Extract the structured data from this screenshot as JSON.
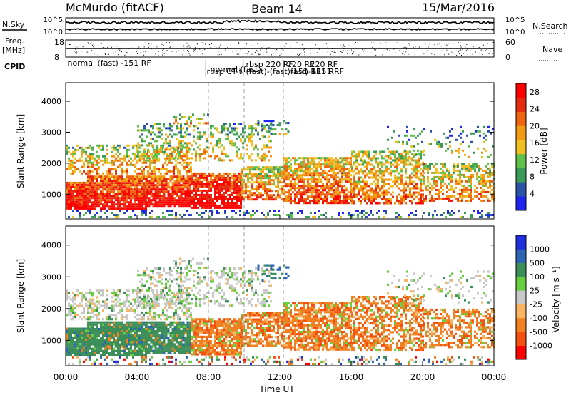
{
  "header": {
    "station": "McMurdo (fitACF)",
    "beam": "Beam 14",
    "date": "15/Mar/2016"
  },
  "noise_panel": {
    "left_label": "N.Sky",
    "right_label": "N.Search",
    "left_ticks": [
      "10^5",
      "10^0"
    ],
    "right_ticks": [
      "10^5",
      "10^0"
    ]
  },
  "freq_panel": {
    "left_label_1": "Freq.",
    "left_label_2": "[MHz]",
    "right_label": "Nave",
    "left_ticks": [
      "18",
      "8"
    ],
    "right_ticks": [
      "60",
      "0"
    ]
  },
  "cpid": {
    "label": "CPID",
    "entries": [
      {
        "text": "normal (fast) -151 RF",
        "start_hour": 0.1
      },
      {
        "text": "rbsp CT-t",
        "start_hour": 7.9
      },
      {
        "text": "normal (fast)",
        "start_hour": 8.1
      },
      {
        "text": "rbsp 220 RF",
        "start_hour": 10.1
      },
      {
        "text": "(fast)-(fast)-151 RF",
        "start_hour": 10.1
      },
      {
        "text": "220 RF",
        "start_hour": 12.4
      },
      {
        "text": "fast)-151 RF",
        "start_hour": 12.6
      },
      {
        "text": "220 RF",
        "start_hour": 13.7
      },
      {
        "text": "-151 RF",
        "start_hour": 13.9
      }
    ]
  },
  "colors": {
    "power": [
      "#1f24f0",
      "#2b53a8",
      "#3a9a58",
      "#5fc04a",
      "#f0c020",
      "#f29a14",
      "#f06410",
      "#e62a10",
      "#ff0000"
    ],
    "velocity": [
      "#ff0000",
      "#f45010",
      "#f08020",
      "#f8b460",
      "#c8c8c8",
      "#68d040",
      "#3d8f5a",
      "#2e64b4",
      "#2030e0"
    ]
  },
  "chart_data": [
    {
      "type": "heatmap",
      "name": "power",
      "ylabel": "Slant Range [km]",
      "yticks": [
        1000,
        2000,
        3000,
        4000
      ],
      "ylim": [
        200,
        4600
      ],
      "xlim": [
        0,
        24
      ],
      "xticks": [
        "00:00",
        "04:00",
        "08:00",
        "12:00",
        "16:00",
        "20:00",
        "00:00"
      ],
      "colorbar_label": "Power [dB]",
      "colorbar_ticks": [
        4,
        8,
        12,
        16,
        20,
        24,
        28
      ],
      "colorbar_range": [
        0,
        30
      ]
    },
    {
      "type": "heatmap",
      "name": "velocity",
      "ylabel": "Slant Range [km]",
      "yticks": [
        1000,
        2000,
        3000,
        4000
      ],
      "ylim": [
        200,
        4600
      ],
      "xlim": [
        0,
        24
      ],
      "xticks": [
        "00:00",
        "04:00",
        "08:00",
        "12:00",
        "16:00",
        "20:00",
        "00:00"
      ],
      "xlabel": "Time UT",
      "colorbar_label": "Velocity [m s⁻¹]",
      "colorbar_ticks": [
        "1000",
        "500",
        "100",
        "25",
        "-25",
        "-100",
        "-500",
        "-1000"
      ]
    }
  ]
}
